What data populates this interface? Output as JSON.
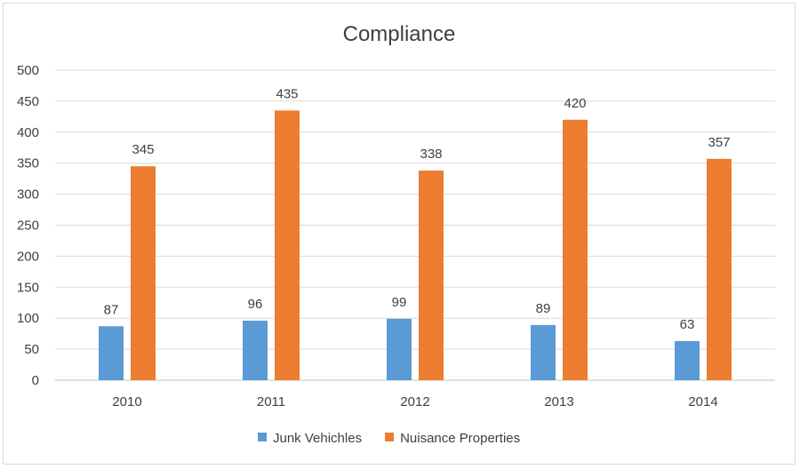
{
  "chart_data": {
    "type": "bar",
    "title": "Compliance",
    "categories": [
      "2010",
      "2011",
      "2012",
      "2013",
      "2014"
    ],
    "series": [
      {
        "name": "Junk Vehichles",
        "values": [
          87,
          96,
          99,
          89,
          63
        ],
        "color": "#5b9bd5"
      },
      {
        "name": "Nuisance Properties",
        "values": [
          345,
          435,
          338,
          420,
          357
        ],
        "color": "#ed7d31"
      }
    ],
    "ylim": [
      0,
      500
    ],
    "yticks": [
      0,
      50,
      100,
      150,
      200,
      250,
      300,
      350,
      400,
      450,
      500
    ],
    "grid": true,
    "legend": "bottom",
    "data_labels": true
  }
}
